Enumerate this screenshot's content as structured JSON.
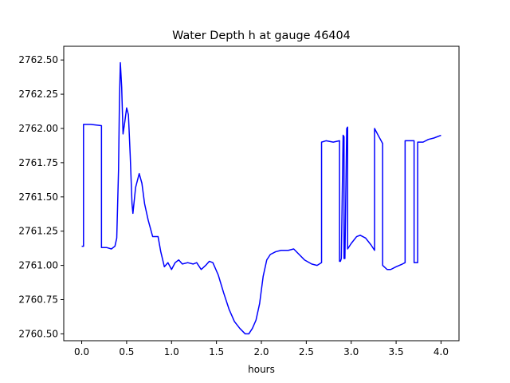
{
  "chart_data": {
    "type": "line",
    "title": "Water Depth h at gauge 46404",
    "xlabel": "hours",
    "ylabel": "",
    "xlim": [
      -0.2,
      4.2
    ],
    "ylim": [
      2760.45,
      2762.6
    ],
    "x_ticks": [
      0.0,
      0.5,
      1.0,
      1.5,
      2.0,
      2.5,
      3.0,
      3.5,
      4.0
    ],
    "x_tick_labels": [
      "0.0",
      "0.5",
      "1.0",
      "1.5",
      "2.0",
      "2.5",
      "3.0",
      "3.5",
      "4.0"
    ],
    "y_ticks": [
      2760.5,
      2760.75,
      2761.0,
      2761.25,
      2761.5,
      2761.75,
      2762.0,
      2762.25,
      2762.5
    ],
    "y_tick_labels": [
      "2760.50",
      "2760.75",
      "2761.00",
      "2761.25",
      "2761.50",
      "2761.75",
      "2762.00",
      "2762.25",
      "2762.50"
    ],
    "grid": false,
    "series": [
      {
        "color": "#0000ff",
        "points": [
          [
            0.0,
            2761.14
          ],
          [
            0.02,
            2761.14
          ],
          [
            0.02,
            2762.03
          ],
          [
            0.1,
            2762.03
          ],
          [
            0.22,
            2762.02
          ],
          [
            0.22,
            2761.13
          ],
          [
            0.28,
            2761.13
          ],
          [
            0.33,
            2761.12
          ],
          [
            0.37,
            2761.14
          ],
          [
            0.39,
            2761.2
          ],
          [
            0.41,
            2761.7
          ],
          [
            0.42,
            2762.2
          ],
          [
            0.43,
            2762.48
          ],
          [
            0.445,
            2762.3
          ],
          [
            0.46,
            2761.96
          ],
          [
            0.48,
            2762.05
          ],
          [
            0.5,
            2762.15
          ],
          [
            0.52,
            2762.1
          ],
          [
            0.54,
            2761.8
          ],
          [
            0.56,
            2761.45
          ],
          [
            0.57,
            2761.38
          ],
          [
            0.6,
            2761.57
          ],
          [
            0.64,
            2761.67
          ],
          [
            0.67,
            2761.6
          ],
          [
            0.7,
            2761.45
          ],
          [
            0.74,
            2761.33
          ],
          [
            0.79,
            2761.21
          ],
          [
            0.85,
            2761.21
          ],
          [
            0.88,
            2761.1
          ],
          [
            0.92,
            2760.99
          ],
          [
            0.96,
            2761.02
          ],
          [
            1.0,
            2760.97
          ],
          [
            1.04,
            2761.02
          ],
          [
            1.08,
            2761.04
          ],
          [
            1.12,
            2761.01
          ],
          [
            1.18,
            2761.02
          ],
          [
            1.24,
            2761.01
          ],
          [
            1.28,
            2761.02
          ],
          [
            1.33,
            2760.97
          ],
          [
            1.38,
            2761.0
          ],
          [
            1.42,
            2761.03
          ],
          [
            1.46,
            2761.02
          ],
          [
            1.52,
            2760.93
          ],
          [
            1.58,
            2760.8
          ],
          [
            1.64,
            2760.68
          ],
          [
            1.7,
            2760.59
          ],
          [
            1.76,
            2760.54
          ],
          [
            1.82,
            2760.5
          ],
          [
            1.86,
            2760.5
          ],
          [
            1.9,
            2760.54
          ],
          [
            1.94,
            2760.6
          ],
          [
            1.98,
            2760.72
          ],
          [
            2.02,
            2760.92
          ],
          [
            2.06,
            2761.04
          ],
          [
            2.1,
            2761.08
          ],
          [
            2.16,
            2761.1
          ],
          [
            2.22,
            2761.11
          ],
          [
            2.3,
            2761.11
          ],
          [
            2.36,
            2761.12
          ],
          [
            2.42,
            2761.08
          ],
          [
            2.48,
            2761.04
          ],
          [
            2.56,
            2761.01
          ],
          [
            2.62,
            2761.0
          ],
          [
            2.67,
            2761.02
          ],
          [
            2.67,
            2761.9
          ],
          [
            2.72,
            2761.91
          ],
          [
            2.8,
            2761.9
          ],
          [
            2.87,
            2761.91
          ],
          [
            2.87,
            2761.03
          ],
          [
            2.88,
            2761.03
          ],
          [
            2.89,
            2761.05
          ],
          [
            2.91,
            2761.95
          ],
          [
            2.92,
            2761.94
          ],
          [
            2.92,
            2761.05
          ],
          [
            2.93,
            2761.05
          ],
          [
            2.95,
            2762.0
          ],
          [
            2.96,
            2762.01
          ],
          [
            2.96,
            2761.12
          ],
          [
            3.0,
            2761.16
          ],
          [
            3.06,
            2761.21
          ],
          [
            3.1,
            2761.22
          ],
          [
            3.16,
            2761.2
          ],
          [
            3.22,
            2761.15
          ],
          [
            3.26,
            2761.11
          ],
          [
            3.26,
            2762.0
          ],
          [
            3.3,
            2761.95
          ],
          [
            3.35,
            2761.89
          ],
          [
            3.35,
            2761.0
          ],
          [
            3.4,
            2760.97
          ],
          [
            3.44,
            2760.97
          ],
          [
            3.5,
            2760.99
          ],
          [
            3.57,
            2761.01
          ],
          [
            3.6,
            2761.02
          ],
          [
            3.6,
            2761.91
          ],
          [
            3.66,
            2761.91
          ],
          [
            3.7,
            2761.91
          ],
          [
            3.7,
            2761.02
          ],
          [
            3.74,
            2761.02
          ],
          [
            3.74,
            2761.9
          ],
          [
            3.8,
            2761.9
          ],
          [
            3.86,
            2761.92
          ],
          [
            3.92,
            2761.93
          ],
          [
            4.0,
            2761.95
          ]
        ]
      }
    ]
  }
}
